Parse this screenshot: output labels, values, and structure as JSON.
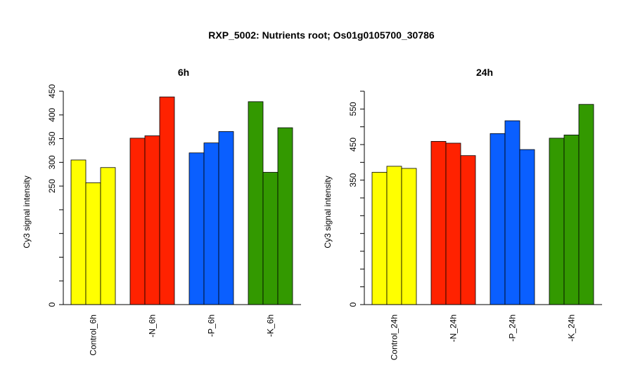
{
  "figure": {
    "title": "RXP_5002: Nutrients root; Os01g0105700_30786"
  },
  "chart_data": [
    {
      "type": "bar",
      "title": "6h",
      "xlabel": "",
      "ylabel": "Cy3 signal intensity",
      "ylim": [
        0,
        450
      ],
      "yticks": [
        0,
        250,
        300,
        350,
        400,
        450
      ],
      "categories": [
        "Control_6h",
        "-N_6h",
        "-P_6h",
        "-K_6h"
      ],
      "colors": [
        "#FFFF00",
        "#FF2200",
        "#0A5FFF",
        "#339900"
      ],
      "values": [
        [
          305,
          257,
          289
        ],
        [
          351,
          356,
          438
        ],
        [
          320,
          341,
          365
        ],
        [
          428,
          279,
          373
        ]
      ],
      "grid": false,
      "legend": "none"
    },
    {
      "type": "bar",
      "title": "24h",
      "xlabel": "",
      "ylabel": "Cy3 signal intensity",
      "ylim": [
        0,
        600
      ],
      "yticks": [
        0,
        350,
        450,
        550
      ],
      "categories": [
        "Control_24h",
        "-N_24h",
        "-P_24h",
        "-K_24h"
      ],
      "colors": [
        "#FFFF00",
        "#FF2200",
        "#0A5FFF",
        "#339900"
      ],
      "values": [
        [
          372,
          389,
          383
        ],
        [
          459,
          454,
          419
        ],
        [
          481,
          517,
          436
        ],
        [
          468,
          477,
          563
        ]
      ],
      "grid": false,
      "legend": "none"
    }
  ]
}
